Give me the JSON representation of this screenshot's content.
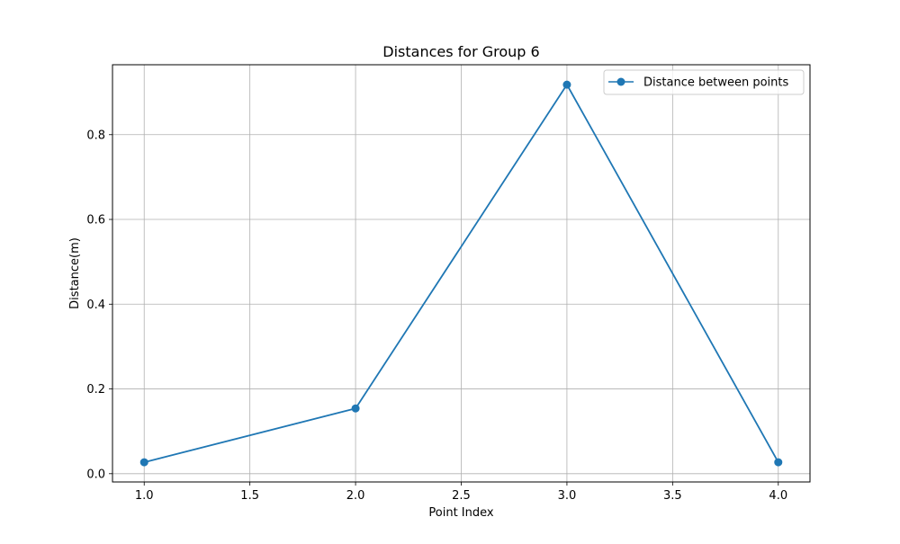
{
  "chart_data": {
    "type": "line",
    "title": "Distances for Group 6",
    "xlabel": "Point Index",
    "ylabel": "Distance(m)",
    "xlim": [
      0.85,
      4.15
    ],
    "ylim": [
      -0.0195,
      0.965
    ],
    "xticks": [
      1.0,
      1.5,
      2.0,
      2.5,
      3.0,
      3.5,
      4.0
    ],
    "xtick_labels": [
      "1.0",
      "1.5",
      "2.0",
      "2.5",
      "3.0",
      "3.5",
      "4.0"
    ],
    "yticks": [
      0.0,
      0.2,
      0.4,
      0.6,
      0.8
    ],
    "ytick_labels": [
      "0.0",
      "0.2",
      "0.4",
      "0.6",
      "0.8"
    ],
    "grid": true,
    "legend_position": "top-right",
    "series": [
      {
        "name": "Distance between points",
        "color": "#1f77b4",
        "marker": "circle",
        "x": [
          1.0,
          2.0,
          3.0,
          4.0
        ],
        "y": [
          0.027,
          0.154,
          0.918,
          0.027
        ]
      }
    ]
  }
}
